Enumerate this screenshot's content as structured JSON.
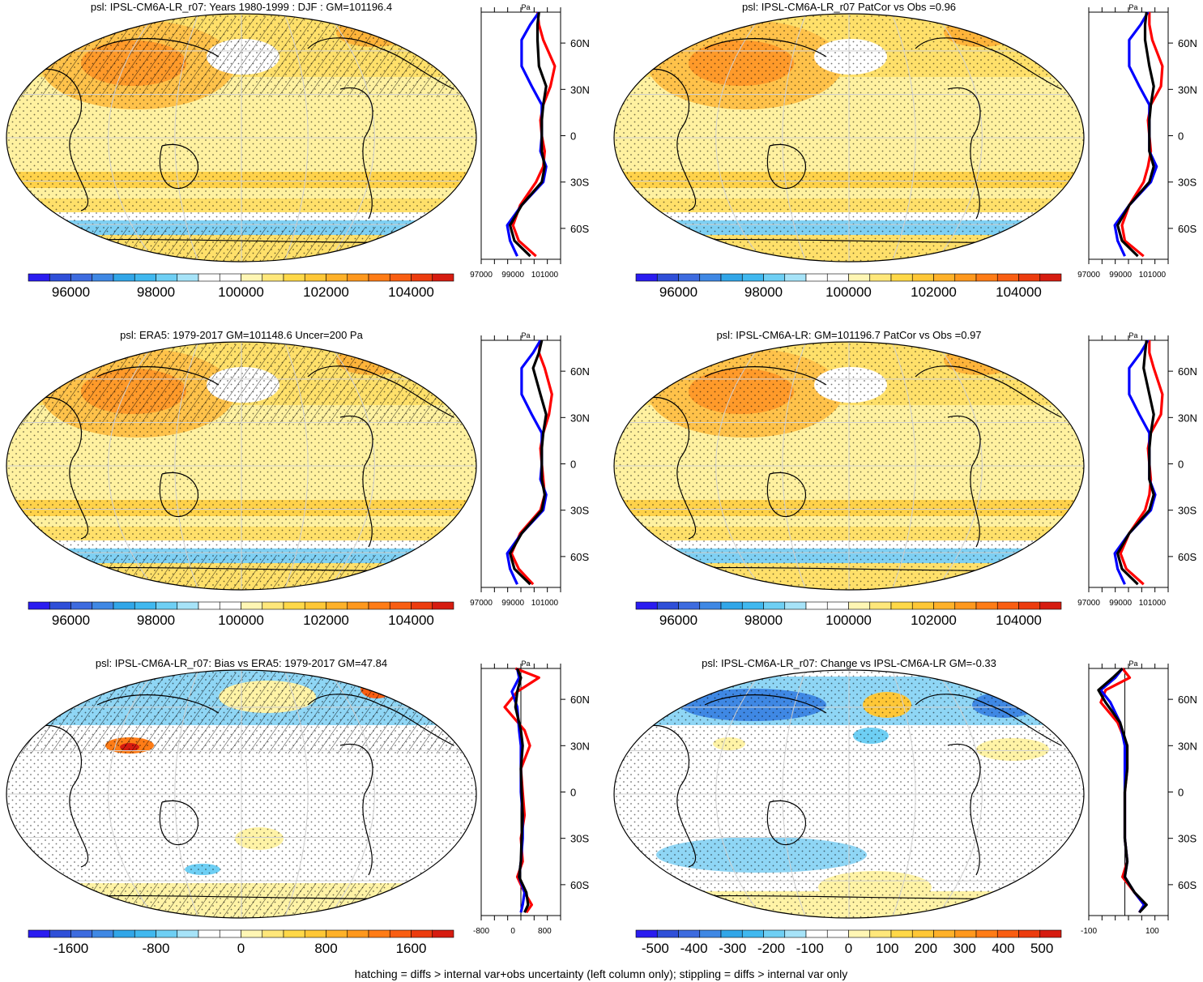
{
  "figure": {
    "footer": "hatching = diffs > internal var+obs uncertainty (left column only); stippling = diffs > internal var only"
  },
  "colors": {
    "grid": "#cfcfcf",
    "model_line": "#ff0000",
    "obs_line": "#0000ff",
    "ensemble_line": "#000000",
    "abs_palette": [
      "#2a1cf0",
      "#2f4fd8",
      "#3d6bdf",
      "#3f88e4",
      "#31a6e8",
      "#40b8ef",
      "#6ecff4",
      "#a6e3f8",
      "#ffffff",
      "#ffffff",
      "#fff6b4",
      "#ffe77a",
      "#ffd848",
      "#ffc736",
      "#ffb129",
      "#ff981d",
      "#ff7c16",
      "#f95e12",
      "#ec3c0e",
      "#d61c10"
    ],
    "diff_palette": [
      "#2a1cf0",
      "#2f4fd8",
      "#3d6bdf",
      "#3f88e4",
      "#31a6e8",
      "#40b8ef",
      "#6ecff4",
      "#a6e3f8",
      "#ffffff",
      "#ffffff",
      "#fff6b4",
      "#ffe77a",
      "#ffd848",
      "#ffc736",
      "#ffb129",
      "#ff981d",
      "#ff7c16",
      "#f95e12",
      "#ec3c0e",
      "#d61c10"
    ]
  },
  "lat_labels": [
    "60N",
    "30N",
    "0",
    "30S",
    "60S"
  ],
  "panels": [
    {
      "id": "p1",
      "title": "psl: IPSL-CM6A-LR_r07: Years 1980-1999 : DJF : GM=101196.4",
      "kind": "abs",
      "colorbar_labels": [
        "96000",
        "98000",
        "100000",
        "102000",
        "104000"
      ],
      "profile_unit": "Pa",
      "profile_ticks": [
        "97000",
        "99000",
        "101000"
      ],
      "hatch": true
    },
    {
      "id": "p2",
      "title": "psl: IPSL-CM6A-LR_r07 PatCor vs Obs =0.96",
      "kind": "abs",
      "colorbar_labels": [
        "96000",
        "98000",
        "100000",
        "102000",
        "104000"
      ],
      "profile_unit": "Pa",
      "profile_ticks": [
        "97000",
        "99000",
        "101000"
      ],
      "hatch": false
    },
    {
      "id": "p3",
      "title": "psl: ERA5: 1979-2017 GM=101148.6 Uncer=200 Pa",
      "kind": "abs",
      "colorbar_labels": [
        "96000",
        "98000",
        "100000",
        "102000",
        "104000"
      ],
      "profile_unit": "Pa",
      "profile_ticks": [
        "97000",
        "99000",
        "101000"
      ],
      "hatch": true
    },
    {
      "id": "p4",
      "title": "psl: IPSL-CM6A-LR: GM=101196.7 PatCor vs Obs =0.97",
      "kind": "abs",
      "colorbar_labels": [
        "96000",
        "98000",
        "100000",
        "102000",
        "104000"
      ],
      "profile_unit": "Pa",
      "profile_ticks": [
        "97000",
        "99000",
        "101000"
      ],
      "hatch": false
    },
    {
      "id": "p5",
      "title": "psl: IPSL-CM6A-LR_r07: Bias vs ERA5: 1979-2017 GM=47.84",
      "kind": "diff",
      "colorbar_labels": [
        "-1600",
        "-800",
        "0",
        "800",
        "1600"
      ],
      "profile_unit": "Pa",
      "profile_ticks": [
        "-800",
        "0",
        "800"
      ],
      "hatch": true
    },
    {
      "id": "p6",
      "title": "psl: IPSL-CM6A-LR_r07: Change vs IPSL-CM6A-LR GM=-0.33",
      "kind": "diff",
      "colorbar_labels": [
        "-500",
        "-400",
        "-300",
        "-200",
        "-100",
        "0",
        "100",
        "200",
        "300",
        "400",
        "500"
      ],
      "profile_unit": "Pa",
      "profile_ticks": [
        "-100",
        "100"
      ],
      "hatch": false
    }
  ],
  "chart_data": [
    {
      "type": "line",
      "panel": "p1",
      "y_label_values": [
        60,
        30,
        0,
        -30,
        -60
      ],
      "xlim": [
        97000,
        102500
      ],
      "series": [
        {
          "color": "red",
          "x": [
            100900,
            101000,
            101300,
            102100,
            101800,
            101300,
            101100,
            101200,
            101400,
            101300,
            100800,
            99700,
            99200,
            99600,
            100800
          ],
          "y": [
            80,
            72,
            62,
            45,
            32,
            20,
            10,
            0,
            -10,
            -20,
            -30,
            -45,
            -58,
            -68,
            -78
          ]
        },
        {
          "color": "blue",
          "x": [
            101000,
            100400,
            99800,
            99800,
            100500,
            101200,
            101200,
            101200,
            101100,
            101500,
            101300,
            99800,
            98800,
            99000,
            99500
          ],
          "y": [
            80,
            72,
            62,
            45,
            32,
            20,
            10,
            0,
            -10,
            -20,
            -30,
            -45,
            -58,
            -68,
            -78
          ]
        },
        {
          "color": "black",
          "x": [
            101000,
            100900,
            100900,
            101000,
            101500,
            101300,
            101200,
            101200,
            101200,
            101400,
            101200,
            99800,
            99000,
            99300,
            100400
          ],
          "y": [
            80,
            72,
            62,
            45,
            32,
            20,
            10,
            0,
            -10,
            -20,
            -30,
            -45,
            -58,
            -68,
            -78
          ]
        }
      ]
    },
    {
      "type": "line",
      "panel": "p2",
      "y_label_values": [
        60,
        30,
        0,
        -30,
        -60
      ],
      "xlim": [
        97000,
        102500
      ],
      "series": [
        {
          "color": "red",
          "x": [
            101200,
            101200,
            101400,
            102100,
            102000,
            101300,
            101100,
            101200,
            101300,
            101100,
            100800,
            99800,
            99300,
            99500,
            100800
          ],
          "y": [
            80,
            72,
            62,
            45,
            32,
            20,
            10,
            0,
            -10,
            -20,
            -30,
            -45,
            -58,
            -68,
            -78
          ]
        },
        {
          "color": "blue",
          "x": [
            101100,
            100600,
            99800,
            99800,
            100500,
            101200,
            101200,
            101200,
            101200,
            101700,
            101300,
            99800,
            98800,
            99000,
            99500
          ],
          "y": [
            80,
            72,
            62,
            45,
            32,
            20,
            10,
            0,
            -10,
            -20,
            -30,
            -45,
            -58,
            -68,
            -78
          ]
        },
        {
          "color": "black",
          "x": [
            101000,
            100900,
            100900,
            101200,
            101500,
            101300,
            101200,
            101200,
            101200,
            101500,
            101200,
            99800,
            99000,
            99300,
            100400
          ],
          "y": [
            80,
            72,
            62,
            45,
            32,
            20,
            10,
            0,
            -10,
            -20,
            -30,
            -45,
            -58,
            -68,
            -78
          ]
        }
      ]
    },
    {
      "type": "line",
      "panel": "p3",
      "y_label_values": [
        60,
        30,
        0,
        -30,
        -60
      ],
      "xlim": [
        97000,
        102500
      ],
      "series": [
        {
          "color": "red",
          "x": [
            101100,
            101000,
            101400,
            101900,
            101700,
            101300,
            101100,
            101200,
            101300,
            101400,
            101100,
            99700,
            99100,
            99600,
            100600
          ],
          "y": [
            80,
            72,
            62,
            45,
            32,
            20,
            10,
            0,
            -10,
            -20,
            -30,
            -45,
            -58,
            -68,
            -78
          ]
        },
        {
          "color": "blue",
          "x": [
            101100,
            100600,
            99800,
            99800,
            100500,
            101200,
            101200,
            101200,
            101100,
            101500,
            101300,
            99800,
            98800,
            99000,
            99500
          ],
          "y": [
            80,
            72,
            62,
            45,
            32,
            20,
            10,
            0,
            -10,
            -20,
            -30,
            -45,
            -58,
            -68,
            -78
          ]
        },
        {
          "color": "black",
          "x": [
            101200,
            101000,
            100600,
            101100,
            101500,
            101300,
            101200,
            101200,
            101200,
            101400,
            101200,
            99800,
            99000,
            99300,
            100400
          ],
          "y": [
            80,
            72,
            62,
            45,
            32,
            20,
            10,
            0,
            -10,
            -20,
            -30,
            -45,
            -58,
            -68,
            -78
          ]
        }
      ]
    },
    {
      "type": "line",
      "panel": "p4",
      "y_label_values": [
        60,
        30,
        0,
        -30,
        -60
      ],
      "xlim": [
        97000,
        102500
      ],
      "series": [
        {
          "color": "red",
          "x": [
            101200,
            101200,
            101500,
            102100,
            102000,
            101300,
            101100,
            101200,
            101300,
            101200,
            100900,
            99800,
            99200,
            99600,
            100800
          ],
          "y": [
            80,
            72,
            62,
            45,
            32,
            20,
            10,
            0,
            -10,
            -20,
            -30,
            -45,
            -58,
            -68,
            -78
          ]
        },
        {
          "color": "blue",
          "x": [
            101100,
            100600,
            99800,
            99800,
            100500,
            101200,
            101200,
            101200,
            101200,
            101600,
            101300,
            99800,
            98800,
            99000,
            99500
          ],
          "y": [
            80,
            72,
            62,
            45,
            32,
            20,
            10,
            0,
            -10,
            -20,
            -30,
            -45,
            -58,
            -68,
            -78
          ]
        },
        {
          "color": "black",
          "x": [
            101000,
            100900,
            100800,
            101200,
            101500,
            101300,
            101200,
            101200,
            101200,
            101500,
            101200,
            99800,
            99000,
            99300,
            100400
          ],
          "y": [
            80,
            72,
            62,
            45,
            32,
            20,
            10,
            0,
            -10,
            -20,
            -30,
            -45,
            -58,
            -68,
            -78
          ]
        }
      ]
    },
    {
      "type": "line",
      "panel": "p5",
      "y_label_values": [
        60,
        30,
        0,
        -30,
        -60
      ],
      "xlim": [
        -1100,
        1100
      ],
      "series": [
        {
          "color": "red",
          "x": [
            -150,
            500,
            -100,
            -450,
            100,
            250,
            0,
            50,
            100,
            0,
            50,
            -100,
            100,
            300,
            150
          ],
          "y": [
            80,
            74,
            65,
            55,
            40,
            30,
            15,
            0,
            -15,
            -30,
            -45,
            -55,
            -65,
            -73,
            -78
          ]
        },
        {
          "color": "blue",
          "x": [
            -100,
            -50,
            -250,
            -100,
            -50,
            0,
            0,
            0,
            50,
            50,
            0,
            -50,
            100,
            50,
            0
          ],
          "y": [
            80,
            74,
            65,
            55,
            40,
            30,
            15,
            0,
            -15,
            -30,
            -45,
            -55,
            -65,
            -73,
            -78
          ]
        },
        {
          "color": "black",
          "x": [
            -100,
            0,
            -100,
            -150,
            0,
            50,
            0,
            20,
            50,
            20,
            0,
            -50,
            150,
            200,
            100
          ],
          "y": [
            80,
            74,
            65,
            55,
            40,
            30,
            15,
            0,
            -15,
            -30,
            -45,
            -55,
            -65,
            -73,
            -78
          ]
        }
      ]
    },
    {
      "type": "line",
      "panel": "p6",
      "y_label_values": [
        60,
        30,
        0,
        -30,
        -60
      ],
      "xlim": [
        -150,
        180
      ],
      "series": [
        {
          "color": "red",
          "x": [
            -10,
            20,
            -80,
            -100,
            -30,
            10,
            10,
            0,
            0,
            0,
            10,
            -10,
            40,
            80,
            60
          ],
          "y": [
            80,
            74,
            66,
            58,
            45,
            30,
            15,
            0,
            -15,
            -30,
            -45,
            -55,
            -65,
            -73,
            -78
          ]
        },
        {
          "color": "blue",
          "x": [
            -10,
            -40,
            -100,
            -60,
            -20,
            0,
            0,
            0,
            0,
            0,
            10,
            0,
            40,
            80,
            60
          ],
          "y": [
            80,
            74,
            66,
            58,
            45,
            30,
            15,
            0,
            -15,
            -30,
            -45,
            -55,
            -65,
            -73,
            -78
          ]
        },
        {
          "color": "black",
          "x": [
            -10,
            -50,
            -110,
            -80,
            -20,
            10,
            10,
            0,
            0,
            0,
            10,
            0,
            40,
            90,
            60
          ],
          "y": [
            80,
            74,
            66,
            58,
            45,
            30,
            15,
            0,
            -15,
            -30,
            -45,
            -55,
            -65,
            -73,
            -78
          ]
        }
      ]
    }
  ]
}
